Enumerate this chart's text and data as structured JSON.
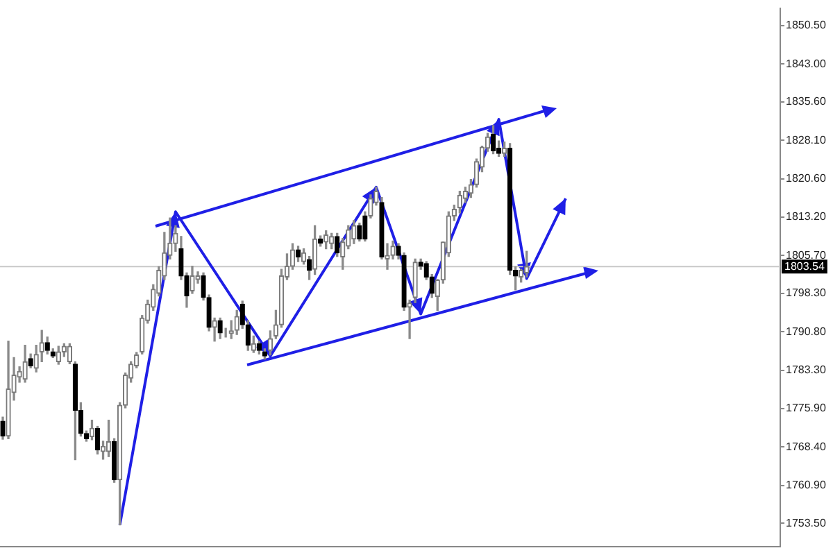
{
  "chart_data": {
    "type": "candlestick",
    "categories": [
      null,
      null,
      null,
      null,
      null,
      null,
      null,
      null,
      null,
      null,
      null,
      null,
      null,
      null,
      null,
      null,
      null,
      null,
      null,
      null,
      null,
      null,
      null,
      null,
      null,
      null,
      null,
      null,
      null,
      null,
      null,
      null,
      null,
      null,
      null,
      null,
      null,
      null,
      null,
      null,
      null,
      null,
      null,
      null,
      null,
      null,
      null,
      null,
      null,
      null,
      null,
      null,
      null,
      null,
      null,
      null,
      null,
      null,
      null,
      null,
      null,
      null,
      null,
      null,
      null,
      null,
      null,
      null,
      null,
      null,
      null,
      null,
      null,
      null,
      null,
      null,
      null,
      null,
      null,
      null,
      null,
      null,
      null,
      null,
      null,
      null,
      null,
      null,
      null,
      null,
      null,
      null,
      null,
      null,
      null,
      null,
      null,
      null,
      null,
      null,
      null,
      null,
      null,
      null,
      null,
      null,
      null,
      null,
      null,
      null,
      null,
      null,
      null,
      null,
      null,
      null,
      null,
      null,
      null,
      null,
      null,
      null,
      null,
      null,
      null,
      null,
      null,
      null,
      null,
      null,
      null,
      null,
      null,
      null,
      null,
      null,
      null,
      null,
      null,
      null
    ],
    "ohlc": [
      [
        1773.4,
        1774.2,
        1769.9,
        1770.5
      ],
      [
        1770.5,
        1789.0,
        1770.0,
        1779.7
      ],
      [
        1779.0,
        1785.8,
        1777.5,
        1782.4
      ],
      [
        1782.0,
        1784.0,
        1781.0,
        1783.1
      ],
      [
        1781.6,
        1788.2,
        1781.0,
        1785.0
      ],
      [
        1785.6,
        1786.5,
        1783.8,
        1784.2
      ],
      [
        1783.7,
        1788.2,
        1783.0,
        1786.4
      ],
      [
        1786.9,
        1791.1,
        1785.0,
        1788.7
      ],
      [
        1788.7,
        1789.8,
        1786.5,
        1787.2
      ],
      [
        1786.9,
        1787.5,
        1785.8,
        1786.1
      ],
      [
        1785.0,
        1788.0,
        1784.5,
        1786.9
      ],
      [
        1786.9,
        1788.5,
        1786.0,
        1788.0
      ],
      [
        1785.0,
        1788.5,
        1784.6,
        1788.0
      ],
      [
        1784.5,
        1785.0,
        1765.9,
        1775.5
      ],
      [
        1775.5,
        1777.0,
        1770.5,
        1771.0
      ],
      [
        1771.0,
        1771.5,
        1769.5,
        1770.0
      ],
      [
        1770.4,
        1773.6,
        1769.8,
        1772.0
      ],
      [
        1772.0,
        1772.4,
        1767.0,
        1767.8
      ],
      [
        1767.5,
        1769.5,
        1766.0,
        1768.5
      ],
      [
        1767.5,
        1773.6,
        1766.5,
        1769.4
      ],
      [
        1769.4,
        1770.0,
        1761.5,
        1762.0
      ],
      [
        1762.0,
        1777.0,
        1753.2,
        1776.5
      ],
      [
        1776.5,
        1782.8,
        1776.0,
        1782.4
      ],
      [
        1781.8,
        1785.0,
        1781.0,
        1784.5
      ],
      [
        1784.2,
        1786.8,
        1783.8,
        1786.3
      ],
      [
        1786.9,
        1794.0,
        1786.5,
        1793.5
      ],
      [
        1793.0,
        1797.0,
        1792.5,
        1796.2
      ],
      [
        1795.6,
        1800.0,
        1795.0,
        1799.1
      ],
      [
        1798.3,
        1803.5,
        1797.8,
        1802.8
      ],
      [
        1801.7,
        1810.2,
        1801.0,
        1806.2
      ],
      [
        1805.7,
        1813.0,
        1805.0,
        1808.1
      ],
      [
        1808.0,
        1811.5,
        1806.5,
        1810.0
      ],
      [
        1807.0,
        1809.4,
        1801.0,
        1801.7
      ],
      [
        1801.7,
        1802.3,
        1795.6,
        1797.8
      ],
      [
        1798.8,
        1803.6,
        1798.3,
        1801.7
      ],
      [
        1801.0,
        1802.5,
        1800.3,
        1801.7
      ],
      [
        1801.7,
        1802.3,
        1797.0,
        1797.5
      ],
      [
        1797.5,
        1798.0,
        1791.0,
        1791.7
      ],
      [
        1791.7,
        1793.5,
        1789.0,
        1793.0
      ],
      [
        1793.0,
        1793.5,
        1789.5,
        1790.6
      ],
      [
        1790.9,
        1791.5,
        1789.8,
        1790.9
      ],
      [
        1790.5,
        1793.0,
        1789.5,
        1791.0
      ],
      [
        1791.1,
        1795.0,
        1790.3,
        1793.8
      ],
      [
        1796.2,
        1796.8,
        1791.5,
        1792.2
      ],
      [
        1792.2,
        1793.0,
        1787.2,
        1788.2
      ],
      [
        1787.2,
        1790.0,
        1786.8,
        1788.5
      ],
      [
        1788.5,
        1789.0,
        1786.5,
        1787.2
      ],
      [
        1786.9,
        1787.5,
        1785.5,
        1786.1
      ],
      [
        1787.2,
        1791.0,
        1786.3,
        1789.5
      ],
      [
        1790.0,
        1795.0,
        1789.5,
        1792.2
      ],
      [
        1792.2,
        1803.0,
        1791.7,
        1801.7
      ],
      [
        1801.5,
        1806.0,
        1801.0,
        1803.6
      ],
      [
        1803.6,
        1808.0,
        1803.0,
        1806.8
      ],
      [
        1806.8,
        1807.5,
        1804.5,
        1805.4
      ],
      [
        1804.5,
        1807.0,
        1804.0,
        1806.2
      ],
      [
        1804.9,
        1805.5,
        1801.0,
        1802.8
      ],
      [
        1803.0,
        1811.5,
        1802.0,
        1808.9
      ],
      [
        1808.9,
        1809.5,
        1807.5,
        1808.1
      ],
      [
        1808.3,
        1810.5,
        1807.0,
        1809.7
      ],
      [
        1808.0,
        1810.0,
        1807.0,
        1809.4
      ],
      [
        1809.4,
        1810.0,
        1805.5,
        1806.2
      ],
      [
        1805.4,
        1809.0,
        1803.0,
        1808.3
      ],
      [
        1807.5,
        1811.5,
        1807.0,
        1810.7
      ],
      [
        1808.9,
        1812.5,
        1808.0,
        1811.5
      ],
      [
        1811.5,
        1812.0,
        1808.5,
        1808.9
      ],
      [
        1813.4,
        1814.2,
        1808.5,
        1808.9
      ],
      [
        1813.4,
        1817.5,
        1813.0,
        1816.8
      ],
      [
        1816.0,
        1819.0,
        1815.5,
        1818.2
      ],
      [
        1816.0,
        1817.0,
        1805.0,
        1805.4
      ],
      [
        1805.0,
        1808.0,
        1803.0,
        1805.7
      ],
      [
        1805.7,
        1808.5,
        1805.0,
        1807.5
      ],
      [
        1807.5,
        1808.0,
        1805.0,
        1805.7
      ],
      [
        1805.7,
        1806.2,
        1795.0,
        1795.6
      ],
      [
        1795.6,
        1797.0,
        1789.5,
        1796.4
      ],
      [
        1797.5,
        1805.0,
        1796.5,
        1804.4
      ],
      [
        1804.4,
        1805.0,
        1803.0,
        1803.6
      ],
      [
        1804.1,
        1804.5,
        1801.0,
        1801.5
      ],
      [
        1801.5,
        1802.0,
        1797.5,
        1798.3
      ],
      [
        1797.7,
        1801.0,
        1795.0,
        1800.9
      ],
      [
        1800.9,
        1808.3,
        1800.3,
        1808.3
      ],
      [
        1806.2,
        1814.2,
        1805.5,
        1813.4
      ],
      [
        1813.4,
        1815.5,
        1812.5,
        1814.7
      ],
      [
        1815.0,
        1818.2,
        1814.0,
        1817.4
      ],
      [
        1816.8,
        1819.0,
        1816.0,
        1818.2
      ],
      [
        1817.8,
        1820.5,
        1817.0,
        1819.5
      ],
      [
        1819.5,
        1824.5,
        1819.0,
        1824.0
      ],
      [
        1822.9,
        1827.0,
        1822.0,
        1826.8
      ],
      [
        1826.6,
        1829.5,
        1826.0,
        1828.8
      ],
      [
        1829.3,
        1831.0,
        1825.5,
        1826.1
      ],
      [
        1826.6,
        1828.0,
        1825.0,
        1825.6
      ],
      [
        1825.6,
        1827.8,
        1825.0,
        1826.6
      ],
      [
        1826.6,
        1827.5,
        1802.0,
        1802.8
      ],
      [
        1802.8,
        1803.5,
        1799.0,
        1801.7
      ],
      [
        1801.5,
        1803.0,
        1800.5,
        1802.8
      ],
      [
        1802.3,
        1806.5,
        1801.5,
        1803.54
      ],
      null,
      null,
      null,
      null,
      null,
      null,
      null,
      null,
      null,
      null,
      null,
      null,
      null,
      null,
      null,
      null,
      null,
      null,
      null,
      null,
      null,
      null,
      null,
      null,
      null,
      null,
      null,
      null,
      null,
      null,
      null,
      null,
      null,
      null,
      null,
      null,
      null,
      null,
      null,
      null,
      null,
      null,
      null,
      null,
      null
    ],
    "ylim": [
      1748.9,
      1853.9
    ],
    "yticks": [
      {
        "value": 1850.5,
        "label": "1850.50"
      },
      {
        "value": 1843,
        "label": "1843.00"
      },
      {
        "value": 1835.6,
        "label": "1835.60"
      },
      {
        "value": 1828.1,
        "label": "1828.10"
      },
      {
        "value": 1820.6,
        "label": "1820.60"
      },
      {
        "value": 1813.2,
        "label": "1813.20"
      },
      {
        "value": 1805.7,
        "label": "1805.70"
      },
      {
        "value": 1798.3,
        "label": "1798.30"
      },
      {
        "value": 1790.8,
        "label": "1790.80"
      },
      {
        "value": 1783.3,
        "label": "1783.30"
      },
      {
        "value": 1775.9,
        "label": "1775.90"
      },
      {
        "value": 1768.4,
        "label": "1768.40"
      },
      {
        "value": 1760.9,
        "label": "1760.90"
      },
      {
        "value": 1753.5,
        "label": "1753.50"
      }
    ],
    "ref_lines": [
      {
        "axis": "y",
        "value": 1803.54,
        "label": "1803.54",
        "color": "#c8c8c8"
      }
    ],
    "tick_labels": "y",
    "series": [
      {
        "type": "line",
        "color": "#1f1fe6",
        "values": [
          null,
          null,
          null,
          null,
          null,
          null,
          null,
          null,
          null,
          null,
          null,
          null,
          null,
          null,
          null,
          null,
          null,
          null,
          null,
          null,
          null,
          1753.2,
          null,
          null,
          null,
          null,
          null,
          null,
          null,
          null,
          null,
          1814.2,
          null,
          null,
          null,
          null,
          null,
          null,
          null,
          null,
          null,
          null,
          null,
          null,
          null,
          null,
          null,
          null,
          1786.1,
          null,
          null,
          null,
          null,
          null,
          null,
          null,
          null,
          null,
          null,
          null,
          null,
          null,
          null,
          null,
          null,
          null,
          null,
          1819.0,
          null,
          null,
          null,
          null,
          null,
          null,
          null,
          1794.3,
          null,
          null,
          null,
          null,
          null,
          null,
          null,
          null,
          null,
          null,
          null,
          null,
          null,
          1832.2,
          null,
          null,
          null,
          null,
          1801.2,
          null,
          null,
          null,
          null,
          null,
          null,
          1816.8,
          null,
          null,
          null,
          null,
          null,
          null,
          null,
          null,
          null,
          null,
          null,
          null,
          null,
          null,
          null,
          null,
          null,
          null,
          null,
          null,
          null,
          null,
          null,
          null,
          null,
          null,
          null,
          null,
          null,
          null,
          null,
          null,
          null,
          null,
          null,
          null,
          null,
          null
        ]
      }
    ]
  }
}
